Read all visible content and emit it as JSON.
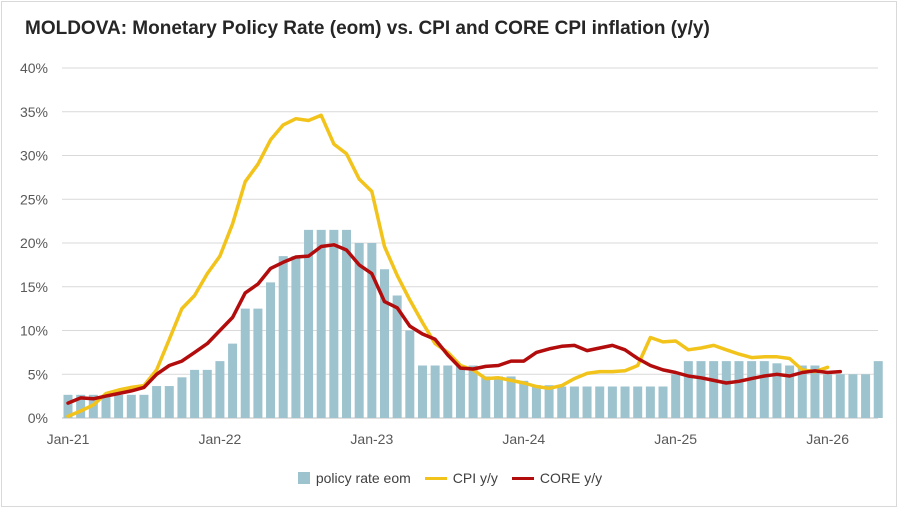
{
  "chart_data": {
    "type": "bar+line",
    "title": "MOLDOVA: Monetary Policy Rate (eom) vs. CPI and CORE CPI inflation (y/y)",
    "x_tick_labels": [
      "Jan-21",
      "Jan-22",
      "Jan-23",
      "Jan-24",
      "Jan-25",
      "Jan-26"
    ],
    "y_tick_labels": [
      "0%",
      "5%",
      "10%",
      "15%",
      "20%",
      "25%",
      "30%",
      "35%",
      "40%"
    ],
    "ylim": [
      0,
      40
    ],
    "legend_position": "bottom",
    "grid": true,
    "series": [
      {
        "name": "policy rate eom",
        "type": "bar",
        "color": "#9dc3ce",
        "values": [
          2.65,
          2.65,
          2.65,
          2.65,
          2.65,
          2.65,
          2.65,
          3.65,
          3.65,
          4.65,
          5.5,
          5.5,
          6.5,
          8.5,
          12.5,
          12.5,
          15.5,
          18.5,
          18.5,
          21.5,
          21.5,
          21.5,
          21.5,
          20.0,
          20.0,
          17.0,
          14.0,
          10.0,
          6.0,
          6.0,
          6.0,
          6.0,
          6.0,
          4.75,
          4.75,
          4.75,
          4.25,
          3.75,
          3.75,
          3.6,
          3.6,
          3.6,
          3.6,
          3.6,
          3.6,
          3.6,
          3.6,
          3.6,
          5.0,
          6.5,
          6.5,
          6.5,
          6.5,
          6.5,
          6.5,
          6.5,
          6.25,
          6.0,
          6.0,
          6.0,
          5.0,
          5.0,
          5.0,
          5.0,
          6.5
        ]
      },
      {
        "name": "CPI y/y",
        "type": "line",
        "color": "#f2c31a",
        "values": [
          0.2,
          0.8,
          1.5,
          2.8,
          3.2,
          3.5,
          3.7,
          5.5,
          9.0,
          12.5,
          14.0,
          16.5,
          18.5,
          22.2,
          27.0,
          29.0,
          31.8,
          33.5,
          34.2,
          34.0,
          34.6,
          31.3,
          30.2,
          27.3,
          25.9,
          19.6,
          16.3,
          13.5,
          10.9,
          8.5,
          7.5,
          6.0,
          5.5,
          4.5,
          4.6,
          4.3,
          4.0,
          3.6,
          3.4,
          3.7,
          4.5,
          5.1,
          5.3,
          5.3,
          5.4,
          6.0,
          9.2,
          8.7,
          8.8,
          7.8,
          8.0,
          8.3,
          7.8,
          7.3,
          6.9,
          7.0,
          7.0,
          6.8,
          5.5,
          5.3,
          5.8
        ]
      },
      {
        "name": "CORE y/y",
        "type": "line",
        "color": "#b30c0c",
        "values": [
          1.7,
          2.3,
          2.2,
          2.5,
          2.8,
          3.1,
          3.5,
          5.0,
          6.0,
          6.5,
          7.5,
          8.5,
          10.0,
          11.5,
          14.3,
          15.3,
          17.1,
          17.8,
          18.4,
          18.5,
          19.6,
          19.8,
          19.2,
          17.5,
          16.5,
          13.3,
          12.6,
          10.5,
          9.6,
          9.0,
          7.2,
          5.7,
          5.6,
          5.9,
          6.0,
          6.5,
          6.5,
          7.5,
          7.9,
          8.2,
          8.3,
          7.7,
          8.0,
          8.3,
          7.8,
          6.8,
          6.0,
          5.5,
          5.2,
          4.8,
          4.6,
          4.3,
          4.0,
          4.2,
          4.5,
          4.8,
          5.0,
          4.8,
          5.2,
          5.4,
          5.2,
          5.3
        ]
      }
    ]
  },
  "colors": {
    "grid": "#d9d9d9",
    "axis": "#bfbfbf"
  }
}
